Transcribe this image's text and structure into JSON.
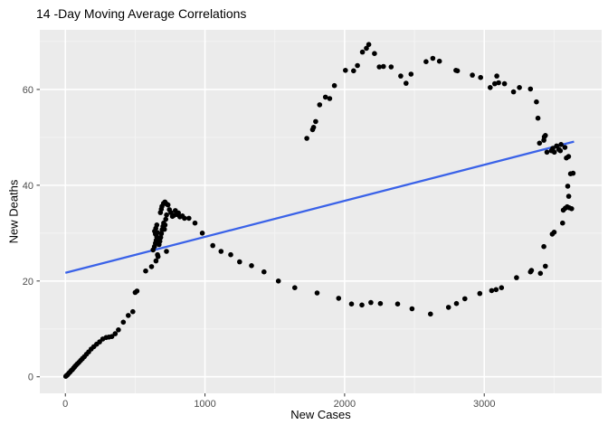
{
  "chart_data": {
    "type": "scatter",
    "title": "14 -Day Moving Average Correlations",
    "xlabel": "New Cases",
    "ylabel": "New Deaths",
    "xlim": [
      -183,
      3841
    ],
    "ylim": [
      -3.45,
      72.45
    ],
    "x_ticks": [
      0,
      1000,
      2000,
      3000
    ],
    "y_ticks": [
      0,
      20,
      40,
      60
    ],
    "x_minor_ticks": [
      500,
      1500,
      2500,
      3500
    ],
    "y_minor_ticks": [
      10,
      30,
      50,
      70
    ],
    "grid": true,
    "legend": "none",
    "panel_background_color": "#EBEBEB",
    "grid_major_color": "#FFFFFF",
    "grid_minor_color": "#F5F5F5",
    "point_color": "#000000",
    "tick_label_color": "#4D4D4D",
    "tick_mark_color": "#333333",
    "regression_line": {
      "x1": 0,
      "y1": 21.7,
      "x2": 3643,
      "y2": 49.1,
      "color": "#3A62E8"
    },
    "points": [
      [
        3,
        0.1
      ],
      [
        10,
        0.3
      ],
      [
        18,
        0.5
      ],
      [
        26,
        0.8
      ],
      [
        34,
        1.0
      ],
      [
        42,
        1.3
      ],
      [
        50,
        1.5
      ],
      [
        58,
        1.8
      ],
      [
        67,
        2.1
      ],
      [
        76,
        2.4
      ],
      [
        86,
        2.7
      ],
      [
        97,
        3.0
      ],
      [
        109,
        3.4
      ],
      [
        122,
        3.8
      ],
      [
        136,
        4.2
      ],
      [
        151,
        4.7
      ],
      [
        167,
        5.2
      ],
      [
        185,
        5.8
      ],
      [
        204,
        6.3
      ],
      [
        224,
        6.8
      ],
      [
        245,
        7.3
      ],
      [
        268,
        7.9
      ],
      [
        292,
        8.2
      ],
      [
        312,
        8.3
      ],
      [
        333,
        8.4
      ],
      [
        357,
        9.0
      ],
      [
        380,
        9.8
      ],
      [
        415,
        11.4
      ],
      [
        451,
        12.8
      ],
      [
        483,
        13.6
      ],
      [
        500,
        17.6
      ],
      [
        513,
        17.9
      ],
      [
        575,
        22.1
      ],
      [
        617,
        23.0
      ],
      [
        649,
        24.2
      ],
      [
        664,
        25.1
      ],
      [
        628,
        26.5
      ],
      [
        660,
        25.5
      ],
      [
        724,
        26.2
      ],
      [
        638,
        27.2
      ],
      [
        645,
        27.9
      ],
      [
        650,
        28.5
      ],
      [
        655,
        29.2
      ],
      [
        645,
        29.8
      ],
      [
        639,
        30.4
      ],
      [
        648,
        31.0
      ],
      [
        655,
        31.7
      ],
      [
        661,
        30.1
      ],
      [
        666,
        28.9
      ],
      [
        671,
        27.6
      ],
      [
        677,
        28.3
      ],
      [
        683,
        29.1
      ],
      [
        688,
        29.9
      ],
      [
        693,
        30.7
      ],
      [
        699,
        31.4
      ],
      [
        704,
        32.1
      ],
      [
        709,
        30.8
      ],
      [
        714,
        31.7
      ],
      [
        719,
        32.9
      ],
      [
        725,
        33.8
      ],
      [
        681,
        34.3
      ],
      [
        687,
        35.0
      ],
      [
        692,
        35.6
      ],
      [
        703,
        36.2
      ],
      [
        713,
        36.5
      ],
      [
        724,
        36.1
      ],
      [
        735,
        35.9
      ],
      [
        745,
        34.9
      ],
      [
        756,
        34.3
      ],
      [
        767,
        33.5
      ],
      [
        777,
        33.7
      ],
      [
        788,
        34.7
      ],
      [
        798,
        33.9
      ],
      [
        810,
        34.2
      ],
      [
        820,
        33.4
      ],
      [
        838,
        33.6
      ],
      [
        853,
        33.1
      ],
      [
        885,
        33.1
      ],
      [
        928,
        32.1
      ],
      [
        981,
        30.0
      ],
      [
        1056,
        27.4
      ],
      [
        1115,
        26.2
      ],
      [
        1184,
        25.5
      ],
      [
        1248,
        24.0
      ],
      [
        1333,
        23.2
      ],
      [
        1423,
        21.9
      ],
      [
        1526,
        20.0
      ],
      [
        1643,
        18.6
      ],
      [
        1803,
        17.5
      ],
      [
        1957,
        16.4
      ],
      [
        2049,
        15.2
      ],
      [
        2124,
        15.0
      ],
      [
        2188,
        15.5
      ],
      [
        2256,
        15.3
      ],
      [
        2380,
        15.2
      ],
      [
        2483,
        14.2
      ],
      [
        2615,
        13.1
      ],
      [
        2744,
        14.5
      ],
      [
        2801,
        15.3
      ],
      [
        2861,
        16.3
      ],
      [
        2968,
        17.4
      ],
      [
        3053,
        18.0
      ],
      [
        3085,
        18.2
      ],
      [
        3124,
        18.6
      ],
      [
        3231,
        20.7
      ],
      [
        3331,
        21.9
      ],
      [
        3402,
        21.6
      ],
      [
        3338,
        22.2
      ],
      [
        3438,
        23.1
      ],
      [
        3427,
        27.2
      ],
      [
        3487,
        29.8
      ],
      [
        3501,
        30.2
      ],
      [
        3561,
        32.1
      ],
      [
        3566,
        34.8
      ],
      [
        3580,
        35.2
      ],
      [
        3594,
        35.5
      ],
      [
        3609,
        35.3
      ],
      [
        3626,
        35.1
      ],
      [
        3605,
        37.7
      ],
      [
        3598,
        39.8
      ],
      [
        3636,
        42.5
      ],
      [
        3618,
        42.4
      ],
      [
        3604,
        46.0
      ],
      [
        3588,
        45.7
      ],
      [
        3578,
        47.9
      ],
      [
        3550,
        48.5
      ],
      [
        3545,
        47.2
      ],
      [
        3533,
        47.5
      ],
      [
        3518,
        48.2
      ],
      [
        3502,
        46.9
      ],
      [
        3491,
        47.7
      ],
      [
        3481,
        47.2
      ],
      [
        3449,
        46.9
      ],
      [
        3438,
        50.4
      ],
      [
        3430,
        50.1
      ],
      [
        3427,
        49.4
      ],
      [
        3396,
        48.8
      ],
      [
        3385,
        54.0
      ],
      [
        3374,
        57.4
      ],
      [
        3331,
        60.1
      ],
      [
        3252,
        60.4
      ],
      [
        3210,
        59.5
      ],
      [
        3145,
        61.2
      ],
      [
        3103,
        61.4
      ],
      [
        3090,
        62.8
      ],
      [
        3075,
        61.2
      ],
      [
        3043,
        60.4
      ],
      [
        2974,
        62.5
      ],
      [
        2915,
        63.0
      ],
      [
        2808,
        63.9
      ],
      [
        2797,
        64.0
      ],
      [
        2679,
        65.9
      ],
      [
        2632,
        66.5
      ],
      [
        2583,
        65.8
      ],
      [
        2476,
        63.2
      ],
      [
        2440,
        61.3
      ],
      [
        2402,
        62.8
      ],
      [
        2333,
        64.7
      ],
      [
        2278,
        64.8
      ],
      [
        2248,
        64.7
      ],
      [
        2214,
        67.5
      ],
      [
        2173,
        69.4
      ],
      [
        2156,
        68.6
      ],
      [
        2128,
        67.8
      ],
      [
        2092,
        65.0
      ],
      [
        2064,
        63.9
      ],
      [
        2006,
        64.0
      ],
      [
        1927,
        60.8
      ],
      [
        1893,
        58.1
      ],
      [
        1863,
        58.4
      ],
      [
        1821,
        56.8
      ],
      [
        1793,
        53.3
      ],
      [
        1778,
        52.1
      ],
      [
        1771,
        51.6
      ],
      [
        1729,
        49.8
      ]
    ]
  }
}
